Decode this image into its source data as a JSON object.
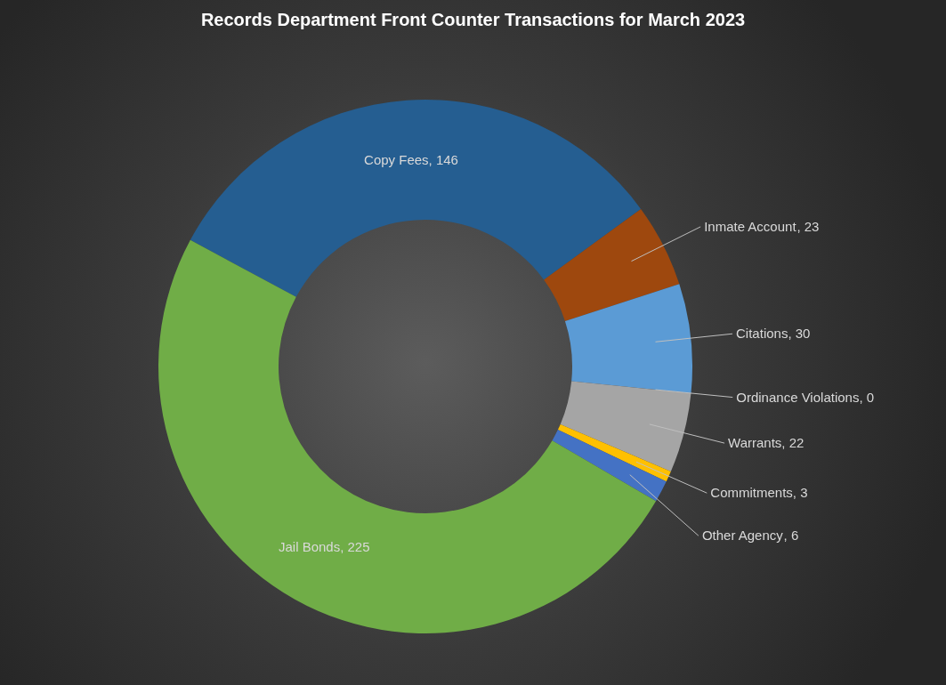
{
  "chart_data": {
    "type": "donut",
    "title": "Records Department Front Counter Transactions for March 2023",
    "categories": [
      "Copy Fees",
      "Inmate Account",
      "Citations",
      "Ordinance Violations",
      "Warrants",
      "Commitments",
      "Other Agency",
      "Jail Bonds"
    ],
    "values": [
      146,
      23,
      30,
      0,
      22,
      3,
      6,
      225
    ],
    "colors": [
      "#255e91",
      "#9e480e",
      "#5b9bd5",
      "#264478",
      "#a5a5a5",
      "#ffc000",
      "#4472c4",
      "#70ad47"
    ],
    "value_labels": [
      ", 146",
      ", 23",
      ", 30",
      ", 0",
      ", 22",
      ", 3",
      ", 6",
      ", 225"
    ]
  }
}
